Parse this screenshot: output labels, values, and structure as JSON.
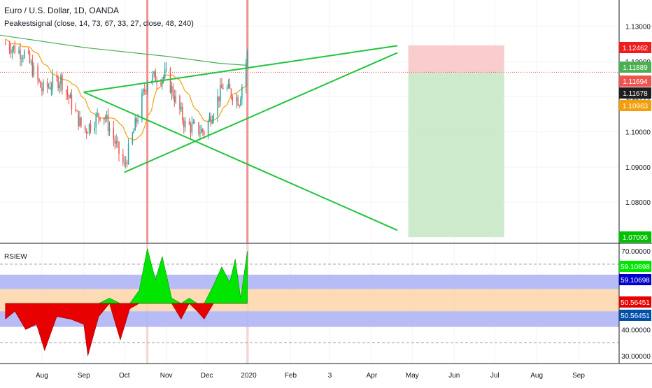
{
  "header": {
    "symbol_title": "Euro / U.S. Dollar, 1D, OANDA",
    "indicator_line": "Peakestsignal (close, 14, 73, 67, 33, 27, close, 48, 240)",
    "lower_pane_title": "RSIEW"
  },
  "colors": {
    "bull_candle": "#26a69a",
    "bear_candle": "#ef5350",
    "ma_short": "#f59e0b",
    "ma_long": "#4caf50",
    "pattern_lines": "#22c43a",
    "signal_bar": "#f08080",
    "stop_zone": "#f8c4c4",
    "target_zone": "#c8e8c8",
    "rsi_bull_fill": "#00e600",
    "rsi_bear_fill": "#e60000",
    "rsi_upper_band": "#aab0f5",
    "rsi_mid_band": "#fbd5a8"
  },
  "chart_data": [
    {
      "type": "candlestick",
      "title": "Euro / U.S. Dollar, 1D, OANDA",
      "x_ticks": [
        "Aug",
        "Sep",
        "Oct",
        "Nov",
        "Dec",
        "2020",
        "Feb",
        "3",
        "Apr",
        "May",
        "Jun",
        "Jul",
        "Aug",
        "Sep"
      ],
      "y_ticks": [
        "1.13000",
        "1.12000",
        "1.11000",
        "1.10000",
        "1.09000",
        "1.08000"
      ],
      "ylim": [
        1.0685,
        1.1375
      ],
      "approx_price_path": [
        {
          "date": "2019-07-05",
          "close": 1.125
        },
        {
          "date": "2019-07-20",
          "close": 1.122
        },
        {
          "date": "2019-08-01",
          "close": 1.112
        },
        {
          "date": "2019-08-15",
          "close": 1.115
        },
        {
          "date": "2019-09-01",
          "close": 1.1
        },
        {
          "date": "2019-09-15",
          "close": 1.106
        },
        {
          "date": "2019-10-01",
          "close": 1.09
        },
        {
          "date": "2019-10-18",
          "close": 1.115
        },
        {
          "date": "2019-11-01",
          "close": 1.116
        },
        {
          "date": "2019-11-15",
          "close": 1.102
        },
        {
          "date": "2019-11-29",
          "close": 1.1
        },
        {
          "date": "2019-12-13",
          "close": 1.113
        },
        {
          "date": "2019-12-25",
          "close": 1.109
        },
        {
          "date": "2019-12-31",
          "close": 1.122
        }
      ],
      "signal_dates": [
        "2019-10-18",
        "2019-12-31"
      ],
      "trade_box": {
        "start": "2020-04-28",
        "end": "2020-07-08",
        "entry": 1.11678,
        "stop": 1.12462,
        "target": 1.07006
      },
      "price_labels": [
        {
          "value": "1.12462",
          "role": "stop",
          "color": "#ef1d1d"
        },
        {
          "value": "1.11889",
          "role": "ma_long",
          "color": "#4caf50"
        },
        {
          "value": "1.11694",
          "role": "last_price",
          "color": "#ef5350"
        },
        {
          "value": "1.11678",
          "role": "entry",
          "color": "#1e1e1e"
        },
        {
          "value": "1.10963",
          "role": "ma_short",
          "color": "#f59e0b"
        },
        {
          "value": "1.07006",
          "role": "target",
          "color": "#00c200"
        }
      ]
    },
    {
      "type": "area",
      "title": "RSIEW",
      "y_ticks": [
        "70.00000",
        "60.00000",
        "50.00000",
        "40.00000",
        "30.00000"
      ],
      "ylim": [
        27,
        73
      ],
      "dashed_levels": [
        65,
        35
      ],
      "upper_band": [
        55.5,
        61
      ],
      "mid_band": [
        47,
        55.5
      ],
      "lower_band": [
        41,
        47
      ],
      "value_labels": [
        {
          "value": "59.10698",
          "color": "#00e600"
        },
        {
          "value": "59.10698",
          "color": "#0000cc"
        },
        {
          "value": "50.56451",
          "color": "#e60000"
        },
        {
          "value": "50.56451",
          "color": "#0050aa"
        }
      ],
      "series": [
        {
          "date": "2019-07-05",
          "value": 44
        },
        {
          "date": "2019-07-12",
          "value": 47
        },
        {
          "date": "2019-07-20",
          "value": 40
        },
        {
          "date": "2019-07-28",
          "value": 42
        },
        {
          "date": "2019-08-03",
          "value": 32
        },
        {
          "date": "2019-08-12",
          "value": 45
        },
        {
          "date": "2019-08-22",
          "value": 44
        },
        {
          "date": "2019-09-01",
          "value": 42
        },
        {
          "date": "2019-09-04",
          "value": 30
        },
        {
          "date": "2019-09-12",
          "value": 45
        },
        {
          "date": "2019-09-20",
          "value": 52
        },
        {
          "date": "2019-09-28",
          "value": 36
        },
        {
          "date": "2019-10-05",
          "value": 48
        },
        {
          "date": "2019-10-12",
          "value": 55
        },
        {
          "date": "2019-10-18",
          "value": 71
        },
        {
          "date": "2019-10-24",
          "value": 59
        },
        {
          "date": "2019-10-29",
          "value": 68
        },
        {
          "date": "2019-11-05",
          "value": 52
        },
        {
          "date": "2019-11-12",
          "value": 44
        },
        {
          "date": "2019-11-18",
          "value": 52
        },
        {
          "date": "2019-11-24",
          "value": 47
        },
        {
          "date": "2019-11-29",
          "value": 44
        },
        {
          "date": "2019-12-06",
          "value": 57
        },
        {
          "date": "2019-12-12",
          "value": 64
        },
        {
          "date": "2019-12-18",
          "value": 58
        },
        {
          "date": "2019-12-22",
          "value": 67
        },
        {
          "date": "2019-12-26",
          "value": 52
        },
        {
          "date": "2019-12-31",
          "value": 70
        }
      ]
    }
  ]
}
